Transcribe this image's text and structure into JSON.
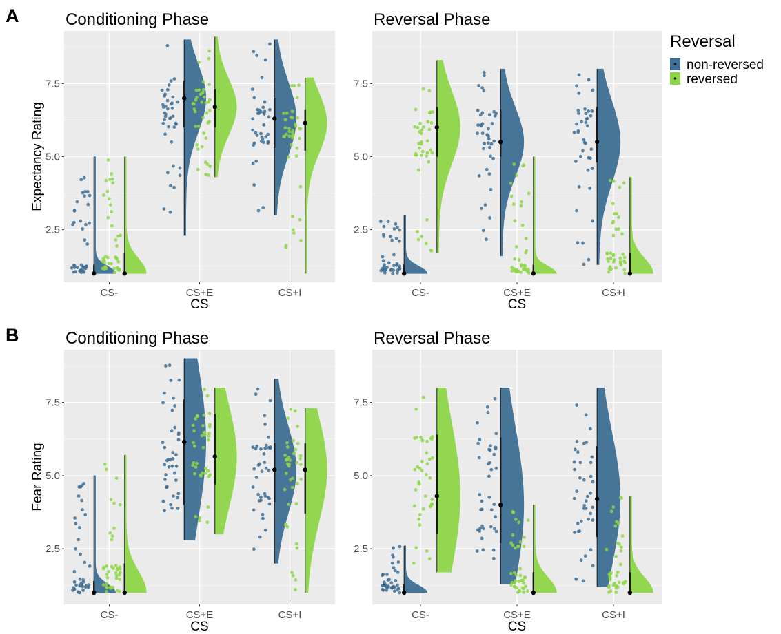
{
  "panel_letters": [
    "A",
    "B"
  ],
  "legend": {
    "title": "Reversal",
    "items": [
      {
        "label": "non-reversed",
        "color": "#3f6f94"
      },
      {
        "label": "reversed",
        "color": "#8ed647"
      }
    ]
  },
  "chart_data": [
    {
      "type": "raincloud",
      "row": "A",
      "title": "Conditioning Phase",
      "xlabel": "CS",
      "ylabel": "Expectancy Rating",
      "categories": [
        "CS-",
        "CS+E",
        "CS+I"
      ],
      "ylim": [
        0.7,
        9.3
      ],
      "yticks": [
        "2.5",
        "5.0",
        "7.5"
      ],
      "grid": true,
      "series": [
        {
          "name": "non-reversed",
          "median": [
            1.0,
            7.0,
            6.3
          ],
          "q1": [
            1.0,
            6.0,
            5.3
          ],
          "q3": [
            1.3,
            7.6,
            7.0
          ],
          "min": [
            1.0,
            2.3,
            3.0
          ],
          "max": [
            5.0,
            9.0,
            9.0
          ]
        },
        {
          "name": "reversed",
          "median": [
            1.0,
            6.7,
            6.15
          ],
          "q1": [
            1.0,
            6.0,
            5.2
          ],
          "q3": [
            1.7,
            7.3,
            6.6
          ],
          "min": [
            1.0,
            4.3,
            1.0
          ],
          "max": [
            5.0,
            9.1,
            7.7
          ]
        }
      ]
    },
    {
      "type": "raincloud",
      "row": "A",
      "title": "Reversal Phase",
      "xlabel": "CS",
      "ylabel": "",
      "categories": [
        "CS-",
        "CS+E",
        "CS+I"
      ],
      "ylim": [
        0.7,
        9.3
      ],
      "yticks": [
        "2.5",
        "5.0",
        "7.5"
      ],
      "grid": true,
      "series": [
        {
          "name": "non-reversed",
          "median": [
            1.0,
            5.5,
            5.5
          ],
          "q1": [
            1.0,
            5.0,
            4.8
          ],
          "q3": [
            1.3,
            6.6,
            6.7
          ],
          "min": [
            1.0,
            1.6,
            1.3
          ],
          "max": [
            3.0,
            8.0,
            8.0
          ]
        },
        {
          "name": "reversed",
          "median": [
            6.0,
            1.0,
            1.0
          ],
          "q1": [
            5.0,
            1.0,
            1.0
          ],
          "q3": [
            6.7,
            1.3,
            1.7
          ],
          "min": [
            1.7,
            1.0,
            1.0
          ],
          "max": [
            8.3,
            5.0,
            4.3
          ]
        }
      ]
    },
    {
      "type": "raincloud",
      "row": "B",
      "title": "Conditioning Phase",
      "xlabel": "CS",
      "ylabel": "Fear Rating",
      "categories": [
        "CS-",
        "CS+E",
        "CS+I"
      ],
      "ylim": [
        0.6,
        9.3
      ],
      "yticks": [
        "2.5",
        "5.0",
        "7.5"
      ],
      "grid": true,
      "series": [
        {
          "name": "non-reversed",
          "median": [
            1.0,
            6.15,
            5.2
          ],
          "q1": [
            1.0,
            4.0,
            4.1
          ],
          "q3": [
            1.4,
            7.6,
            6.1
          ],
          "min": [
            1.0,
            2.8,
            2.0
          ],
          "max": [
            5.0,
            9.0,
            8.3
          ]
        },
        {
          "name": "reversed",
          "median": [
            1.0,
            5.65,
            5.2
          ],
          "q1": [
            1.0,
            4.7,
            3.7
          ],
          "q3": [
            2.0,
            7.1,
            6.1
          ],
          "min": [
            1.0,
            3.0,
            1.0
          ],
          "max": [
            5.7,
            8.0,
            7.3
          ]
        }
      ]
    },
    {
      "type": "raincloud",
      "row": "B",
      "title": "Reversal Phase",
      "xlabel": "CS",
      "ylabel": "",
      "categories": [
        "CS-",
        "CS+E",
        "CS+I"
      ],
      "ylim": [
        0.6,
        9.3
      ],
      "yticks": [
        "2.5",
        "5.0",
        "7.5"
      ],
      "grid": true,
      "series": [
        {
          "name": "non-reversed",
          "median": [
            1.0,
            4.0,
            4.2
          ],
          "q1": [
            1.0,
            2.7,
            2.9
          ],
          "q3": [
            1.3,
            6.3,
            6.0
          ],
          "min": [
            1.0,
            1.3,
            1.2
          ],
          "max": [
            2.6,
            8.0,
            8.0
          ]
        },
        {
          "name": "reversed",
          "median": [
            4.3,
            1.0,
            1.0
          ],
          "q1": [
            3.0,
            1.0,
            1.0
          ],
          "q3": [
            6.4,
            1.7,
            1.7
          ],
          "min": [
            1.7,
            1.0,
            1.0
          ],
          "max": [
            8.0,
            4.0,
            4.3
          ]
        }
      ]
    }
  ]
}
